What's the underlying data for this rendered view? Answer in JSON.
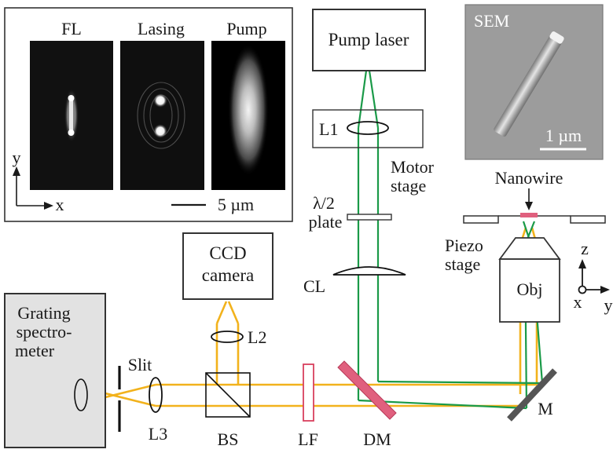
{
  "inset": {
    "panel_labels": {
      "fl": "FL",
      "lasing": "Lasing",
      "pump": "Pump"
    },
    "scale_bar_label": "5 µm",
    "axis_y": "y",
    "axis_x": "x"
  },
  "sem": {
    "label": "SEM",
    "scale_bar_label": "1 µm"
  },
  "components": {
    "pump_laser": "Pump laser",
    "l1": "L1",
    "motor_stage_line1": "Motor",
    "motor_stage_line2": "stage",
    "half_wave_line1": "λ/2",
    "half_wave_line2": "plate",
    "cl": "CL",
    "nanowire": "Nanowire",
    "piezo_stage_line1": "Piezo",
    "piezo_stage_line2": "stage",
    "obj": "Obj",
    "axis_z": "z",
    "axis_x": "x",
    "axis_y": "y",
    "ccd_line1": "CCD",
    "ccd_line2": "camera",
    "l2": "L2",
    "spectrometer_line1": "Grating",
    "spectrometer_line2": "spectro-",
    "spectrometer_line3": "meter",
    "slit": "Slit",
    "l3": "L3",
    "bs": "BS",
    "lf": "LF",
    "dm": "DM",
    "m": "M"
  },
  "colors": {
    "pump_beam": "#1a9a48",
    "emission_beam": "#f2b21c",
    "dichroic": "#e0607e",
    "filter": "#d8405e",
    "mirror": "#555555",
    "spectrometer_bg": "#e2e2e2",
    "sem_bg": "#9c9c9c",
    "panel_bg": "#000000"
  }
}
